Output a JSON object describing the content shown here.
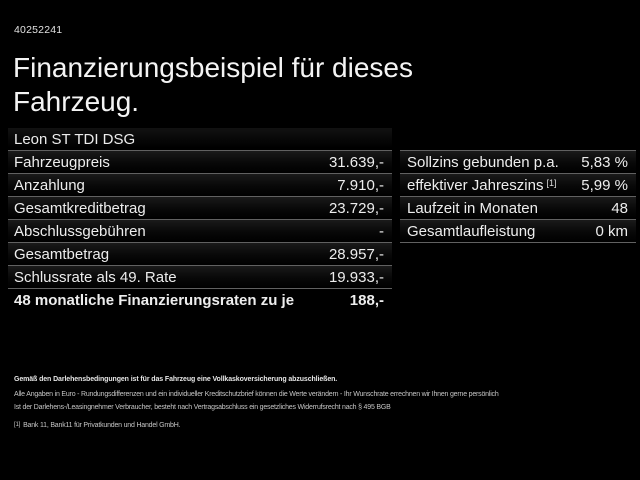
{
  "page": {
    "vehicle_id": "40252241",
    "title_line1": "Finanzierungsbeispiel für dieses",
    "title_line2": "Fahrzeug.",
    "background_color": "#000000",
    "text_color": "#ededed",
    "divider_color": "#6e6e6e"
  },
  "finance_table": {
    "model": "Leon ST TDI DSG",
    "rows": [
      {
        "label": "Fahrzeugpreis",
        "value": "31.639,-"
      },
      {
        "label": "Anzahlung",
        "value": "7.910,-"
      },
      {
        "label": "Gesamtkreditbetrag",
        "value": "23.729,-"
      },
      {
        "label": "Abschlussgebühren",
        "value": "-"
      },
      {
        "label": "Gesamtbetrag",
        "value": "28.957,-"
      },
      {
        "label": "Schlussrate als 49. Rate",
        "value": "19.933,-"
      },
      {
        "label": "48 monatliche Finanzierungsraten zu je",
        "value": "188,-"
      }
    ]
  },
  "conditions_table": {
    "rows": [
      {
        "label": "Sollzins gebunden p.a.",
        "value": "5,83 %"
      },
      {
        "label": "effektiver Jahreszins",
        "footnote_ref": "[1]",
        "value": "5,99 %"
      },
      {
        "label": "Laufzeit in Monaten",
        "value": "48"
      },
      {
        "label": "Gesamtlaufleistung",
        "value": "0 km"
      }
    ]
  },
  "legal": {
    "insurance_note": "Gemäß den Darlehensbedingungen ist für das Fahrzeug eine Vollkaskoversicherung abzuschließen.",
    "disclaimer_line1": "Alle Angaben in Euro - Rundungsdifferenzen und ein individueller Kreditschutzbrief können die Werte verändern - Ihr Wunschrate errechnen wir Ihnen gerne persönlich",
    "disclaimer_line2": "Ist der Darlehens-/Leasingnehmer Verbraucher, besteht nach Vertragsabschluss ein gesetzliches Widerrufsrecht nach § 495 BGB",
    "footnote_marker": "[1]",
    "footnote_text": "Bank 11, Bank11 für Privatkunden und Handel GmbH."
  }
}
